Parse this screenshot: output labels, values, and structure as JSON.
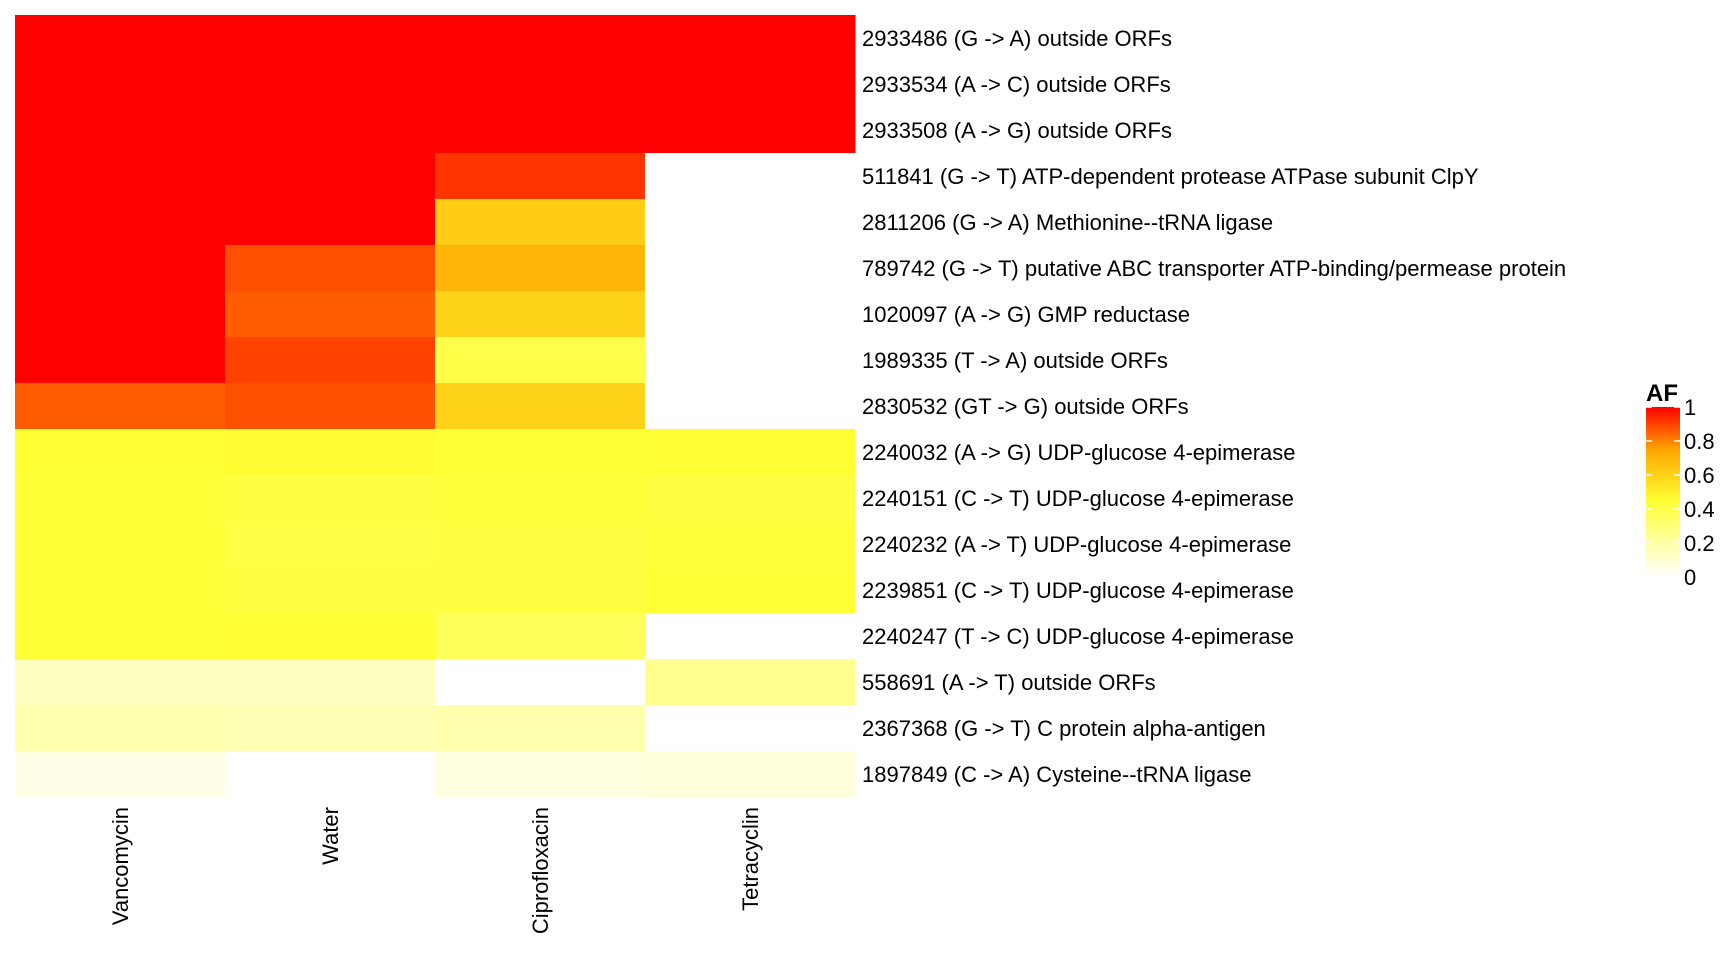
{
  "chart_data": {
    "type": "heatmap",
    "title": "",
    "xlabel": "",
    "ylabel": "",
    "columns": [
      "Vancomycin",
      "Water",
      "Ciprofloxacin",
      "Tetracyclin"
    ],
    "rows": [
      "2933486 (G -> A) outside ORFs",
      "2933534 (A -> C) outside ORFs",
      "2933508 (A -> G) outside ORFs",
      "511841 (G -> T) ATP-dependent protease ATPase subunit ClpY",
      "2811206 (G -> A) Methionine--tRNA ligase",
      "789742 (G -> T) putative ABC transporter ATP-binding/permease protein",
      "1020097 (A -> G) GMP reductase",
      "1989335 (T -> A) outside ORFs",
      "2830532 (GT -> G) outside ORFs",
      "2240032 (A -> G) UDP-glucose 4-epimerase",
      "2240151 (C -> T) UDP-glucose 4-epimerase",
      "2240232 (A -> T) UDP-glucose 4-epimerase",
      "2239851 (C -> T) UDP-glucose 4-epimerase",
      "2240247 (T -> C) UDP-glucose 4-epimerase",
      "558691 (A -> T) outside ORFs",
      "2367368 (G -> T) C protein alpha-antigen",
      "1897849 (C -> A) Cysteine--tRNA ligase"
    ],
    "values": [
      [
        1.0,
        1.0,
        1.0,
        1.0
      ],
      [
        1.0,
        1.0,
        1.0,
        1.0
      ],
      [
        1.0,
        1.0,
        1.0,
        1.0
      ],
      [
        1.0,
        1.0,
        0.92,
        null
      ],
      [
        1.0,
        1.0,
        0.62,
        null
      ],
      [
        1.0,
        0.88,
        0.7,
        null
      ],
      [
        1.0,
        0.86,
        0.6,
        null
      ],
      [
        1.0,
        0.9,
        0.4,
        null
      ],
      [
        0.86,
        0.88,
        0.6,
        null
      ],
      [
        0.45,
        0.46,
        0.44,
        0.45
      ],
      [
        0.44,
        0.42,
        0.43,
        0.42
      ],
      [
        0.44,
        0.41,
        0.42,
        0.43
      ],
      [
        0.44,
        0.42,
        0.42,
        0.44
      ],
      [
        0.44,
        0.45,
        0.36,
        null
      ],
      [
        0.14,
        0.14,
        null,
        0.25
      ],
      [
        0.18,
        0.16,
        0.18,
        null
      ],
      [
        0.05,
        null,
        0.07,
        0.08
      ]
    ],
    "legend": {
      "title": "AF",
      "ticks": [
        1,
        0.8,
        0.6,
        0.4,
        0.2,
        0
      ],
      "position": "right"
    },
    "color_scale": [
      {
        "value": 0.0,
        "color": "#ffffff"
      },
      {
        "value": 0.45,
        "color": "#ffff33"
      },
      {
        "value": 0.75,
        "color": "#ffa500"
      },
      {
        "value": 1.0,
        "color": "#ff0000"
      }
    ],
    "missing_color": "#ffffff"
  }
}
